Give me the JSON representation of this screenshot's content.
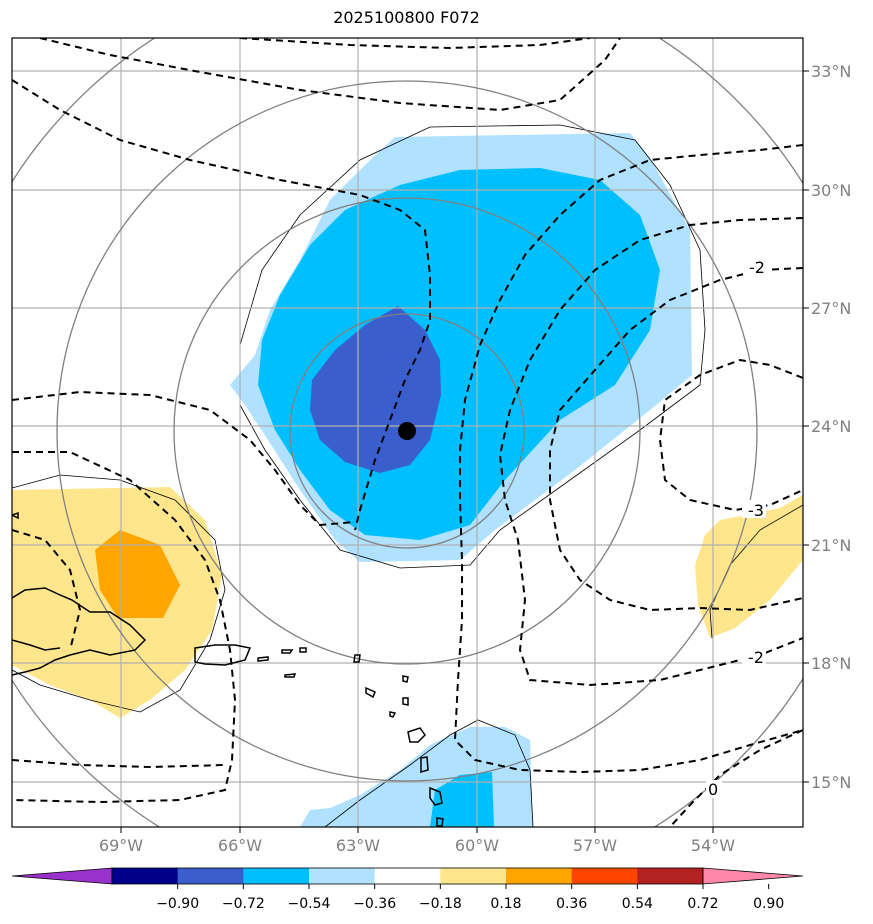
{
  "title": "2025100800 F072",
  "lat_ticks": [
    "33°N",
    "30°N",
    "27°N",
    "24°N",
    "21°N",
    "18°N",
    "15°N"
  ],
  "lon_ticks": [
    "69°W",
    "66°W",
    "63°W",
    "60°W",
    "57°W",
    "54°W"
  ],
  "contour_labels": [
    "-2",
    "-3",
    "-2",
    "0"
  ],
  "colorbar": {
    "labels": [
      "−0.90",
      "−0.72",
      "−0.54",
      "−0.36",
      "−0.18",
      "0.18",
      "0.36",
      "0.54",
      "0.72",
      "0.90"
    ],
    "colors": [
      "#9932cc",
      "#00008b",
      "#3a5fcd",
      "#00bfff",
      "#b0e2ff",
      "#ffffff",
      "#ffe68c",
      "#ffa500",
      "#ff4500",
      "#b22222",
      "#ff88aa"
    ]
  },
  "storm_center": {
    "lat": 23.9,
    "lon": -61.7
  }
}
